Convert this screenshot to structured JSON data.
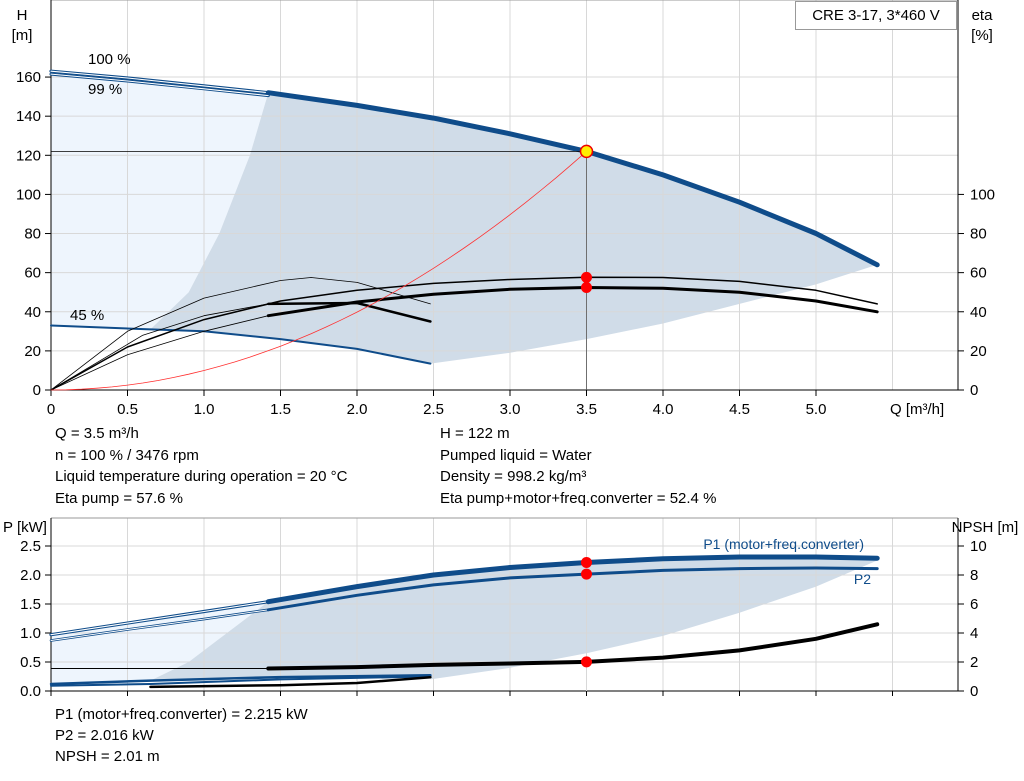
{
  "title_box": "CRE 3-17, 3*460 V",
  "info": {
    "left": [
      "Q = 3.5 m³/h",
      "n = 100 % / 3476 rpm",
      "Liquid temperature during operation = 20 °C",
      "Eta pump = 57.6 %"
    ],
    "right": [
      "H = 122 m",
      "Pumped liquid = Water",
      "Density = 998.2 kg/m³",
      "Eta pump+motor+freq.converter = 52.4 %"
    ],
    "bottom": [
      "P1 (motor+freq.converter) = 2.215 kW",
      "P2 = 2.016 kW",
      "NPSH = 2.01 m"
    ]
  },
  "colors": {
    "curve": "#0f4c8a",
    "shade_dark": "#d0dce8",
    "shade_light": "#eef5fd",
    "duty": "#ff0000",
    "system": "#ff3030",
    "grid": "#d8d8d8"
  },
  "chart_data": [
    {
      "type": "line",
      "xlabel": "Q [m³/h]",
      "ylabel": "H\n[m]",
      "y2label": "eta\n[%]",
      "xlim": [
        0,
        5.9
      ],
      "ylim": [
        0,
        199
      ],
      "y2lim": [
        0,
        199
      ],
      "xticks": [
        "0",
        "0.5",
        "1.0",
        "1.5",
        "2.0",
        "2.5",
        "3.0",
        "3.5",
        "4.0",
        "4.5",
        "5.0"
      ],
      "yticks": [
        0,
        20,
        40,
        60,
        80,
        100,
        120,
        140,
        160
      ],
      "y2ticks": [
        0,
        20,
        40,
        60,
        80,
        100
      ],
      "labels": {
        "speed_max": "100 %",
        "speed_99": "99 %",
        "speed_min": "45 %"
      },
      "series": {
        "H_100": [
          [
            0,
            163
          ],
          [
            0.5,
            159.5
          ],
          [
            1,
            155.5
          ],
          [
            1.42,
            152
          ],
          [
            2,
            145.5
          ],
          [
            2.5,
            139
          ],
          [
            3,
            131
          ],
          [
            3.5,
            122
          ],
          [
            4,
            110
          ],
          [
            4.5,
            96
          ],
          [
            5,
            80
          ],
          [
            5.4,
            64
          ]
        ],
        "H_99": [
          [
            0,
            161.5
          ],
          [
            0.5,
            158
          ],
          [
            1,
            154
          ],
          [
            1.42,
            150.5
          ]
        ],
        "H_45": [
          [
            0,
            33
          ],
          [
            0.65,
            31
          ],
          [
            1,
            30
          ],
          [
            1.5,
            26
          ],
          [
            2,
            21
          ],
          [
            2.48,
            13.5
          ]
        ],
        "eta_pump_100": [
          [
            0,
            0
          ],
          [
            0.5,
            22
          ],
          [
            1,
            36
          ],
          [
            1.5,
            45.5
          ],
          [
            2,
            51
          ],
          [
            2.5,
            54.5
          ],
          [
            3,
            56.5
          ],
          [
            3.5,
            57.6
          ],
          [
            4,
            57.5
          ],
          [
            4.5,
            55.5
          ],
          [
            5,
            51
          ],
          [
            5.4,
            44
          ]
        ],
        "eta_total_100": [
          [
            0,
            0
          ],
          [
            0.5,
            18
          ],
          [
            1,
            30
          ],
          [
            1.42,
            38
          ],
          [
            2,
            45
          ],
          [
            2.5,
            49
          ],
          [
            3,
            51.5
          ],
          [
            3.5,
            52.4
          ],
          [
            4,
            52
          ],
          [
            4.5,
            50
          ],
          [
            5,
            45.5
          ],
          [
            5.4,
            40
          ]
        ],
        "eta_pump_45": [
          [
            0,
            0
          ],
          [
            0.5,
            30
          ],
          [
            1,
            47
          ],
          [
            1.5,
            56
          ],
          [
            1.7,
            57.5
          ],
          [
            2,
            55
          ],
          [
            2.48,
            44
          ]
        ],
        "eta_total_45": [
          [
            0,
            0
          ],
          [
            0.6,
            28
          ],
          [
            1,
            38
          ],
          [
            1.42,
            44
          ],
          [
            2,
            44.5
          ],
          [
            2.48,
            35
          ]
        ],
        "region_lower": [
          [
            2.48,
            13.5
          ],
          [
            3,
            19
          ],
          [
            3.5,
            26
          ],
          [
            4,
            34
          ],
          [
            4.5,
            44
          ],
          [
            5,
            54
          ],
          [
            5.4,
            64
          ]
        ],
        "region_left": [
          [
            0.65,
            31
          ],
          [
            0.9,
            50
          ],
          [
            1.1,
            80
          ],
          [
            1.3,
            120
          ],
          [
            1.42,
            152
          ]
        ]
      },
      "duty_point": {
        "Q": 3.5,
        "H": 122,
        "eta_pump": 57.6,
        "eta_total": 52.4
      }
    },
    {
      "type": "line",
      "ylabel": "P\n[kW]",
      "y2label": "NPSH\n[m]",
      "xlim": [
        0,
        5.9
      ],
      "ylim": [
        0,
        3.0
      ],
      "y2lim": [
        0,
        12
      ],
      "yticks": [
        "0.0",
        "0.5",
        "1.0",
        "1.5",
        "2.0",
        "2.5"
      ],
      "y2ticks": [
        0,
        2,
        4,
        6,
        8,
        10
      ],
      "labels": {
        "p1": "P1 (motor+freq.converter)",
        "p2": "P2"
      },
      "series": {
        "P1_100": [
          [
            0,
            0.97
          ],
          [
            0.5,
            1.17
          ],
          [
            1,
            1.37
          ],
          [
            1.42,
            1.54
          ],
          [
            2,
            1.8
          ],
          [
            2.5,
            2.0
          ],
          [
            3,
            2.13
          ],
          [
            3.5,
            2.215
          ],
          [
            4,
            2.28
          ],
          [
            4.5,
            2.31
          ],
          [
            5,
            2.31
          ],
          [
            5.4,
            2.29
          ]
        ],
        "P2_100": [
          [
            0,
            0.87
          ],
          [
            0.5,
            1.06
          ],
          [
            1,
            1.24
          ],
          [
            1.42,
            1.4
          ],
          [
            2,
            1.65
          ],
          [
            2.5,
            1.83
          ],
          [
            3,
            1.95
          ],
          [
            3.5,
            2.016
          ],
          [
            4,
            2.08
          ],
          [
            4.5,
            2.11
          ],
          [
            5,
            2.12
          ],
          [
            5.4,
            2.11
          ]
        ],
        "NPSH_100": [
          [
            0,
            1.55
          ],
          [
            1.42,
            1.55
          ],
          [
            2,
            1.65
          ],
          [
            2.5,
            1.8
          ],
          [
            3,
            1.9
          ],
          [
            3.5,
            2.01
          ],
          [
            4,
            2.3
          ],
          [
            4.5,
            2.8
          ],
          [
            5,
            3.6
          ],
          [
            5.4,
            4.6
          ]
        ],
        "P1_45": [
          [
            0,
            0.12
          ],
          [
            0.65,
            0.18
          ],
          [
            1.5,
            0.24
          ],
          [
            2.48,
            0.27
          ]
        ],
        "P2_45": [
          [
            0,
            0.09
          ],
          [
            0.65,
            0.12
          ],
          [
            1.5,
            0.2
          ],
          [
            2.48,
            0.25
          ]
        ],
        "NPSH_45": [
          [
            0.65,
            0.28
          ],
          [
            1.5,
            0.4
          ],
          [
            2,
            0.55
          ],
          [
            2.48,
            0.95
          ]
        ],
        "region_lower": [
          [
            2.48,
            0.2
          ],
          [
            3,
            0.4
          ],
          [
            3.5,
            0.65
          ],
          [
            4,
            0.95
          ],
          [
            4.5,
            1.35
          ],
          [
            5,
            1.8
          ],
          [
            5.4,
            2.25
          ]
        ],
        "region_left": [
          [
            0.65,
            0.18
          ],
          [
            0.9,
            0.5
          ],
          [
            1.1,
            0.9
          ],
          [
            1.3,
            1.3
          ],
          [
            1.42,
            1.54
          ]
        ]
      },
      "duty_point": {
        "P1": 2.215,
        "P2": 2.016,
        "NPSH": 2.01
      }
    }
  ]
}
